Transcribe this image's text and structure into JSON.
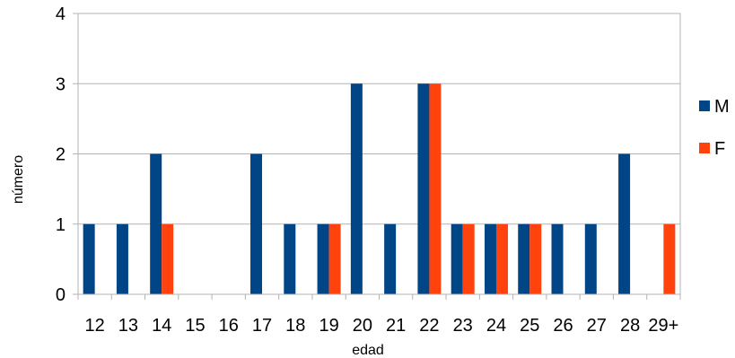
{
  "chart_data": {
    "type": "bar",
    "title": "",
    "xlabel": "edad",
    "ylabel": "número",
    "categories": [
      "12",
      "13",
      "14",
      "15",
      "16",
      "17",
      "18",
      "19",
      "20",
      "21",
      "22",
      "23",
      "24",
      "25",
      "26",
      "27",
      "28",
      "29+"
    ],
    "series": [
      {
        "name": "M",
        "color": "#004586",
        "values": [
          1,
          1,
          2,
          0,
          0,
          2,
          1,
          1,
          3,
          1,
          3,
          1,
          1,
          1,
          1,
          1,
          2,
          0
        ]
      },
      {
        "name": "F",
        "color": "#ff420e",
        "values": [
          0,
          0,
          1,
          0,
          0,
          0,
          0,
          1,
          0,
          0,
          3,
          1,
          1,
          1,
          0,
          0,
          0,
          1
        ]
      }
    ],
    "ylim": [
      0,
      4
    ],
    "yticks": [
      0,
      1,
      2,
      3,
      4
    ],
    "grid": true,
    "legend": "right"
  }
}
